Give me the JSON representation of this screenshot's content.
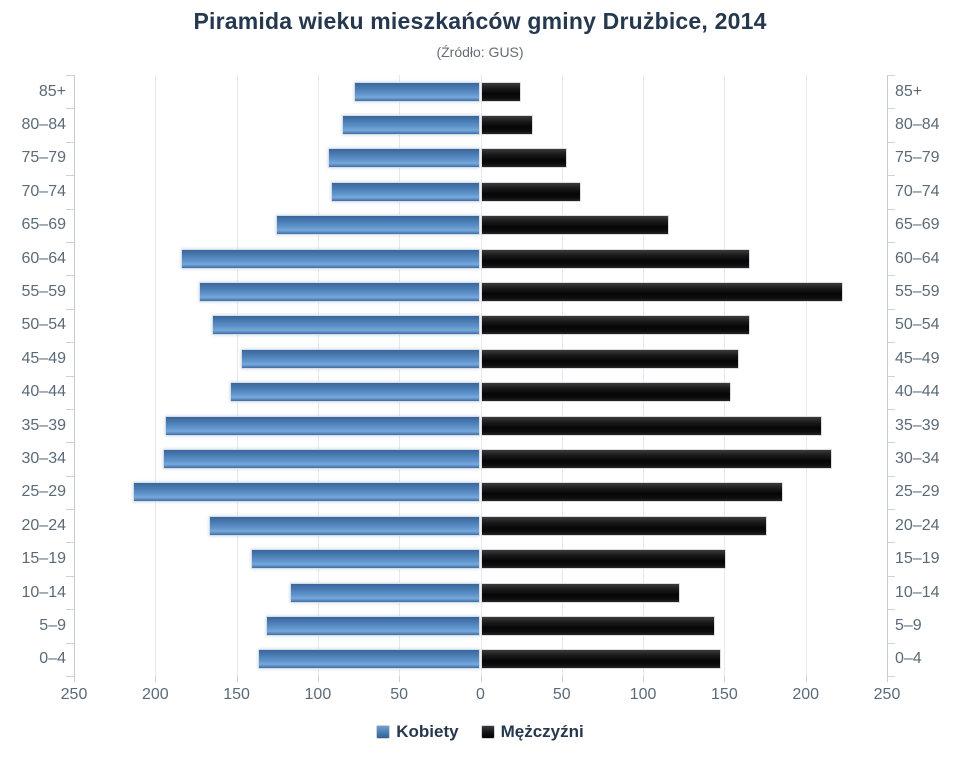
{
  "title": "Piramida wieku mieszkańców gminy Drużbice, 2014",
  "subtitle": "(Źródło: GUS)",
  "colors": {
    "kobiety": "#4a7cb2",
    "mezczyzni": "#141414",
    "grid": "#e6e8ea",
    "axis": "#c6cbd0",
    "labels": "#5b6a76",
    "title_text": "#25384e"
  },
  "legend": {
    "position": "bottom",
    "items": [
      {
        "label": "Kobiety",
        "series": "kobiety"
      },
      {
        "label": "Mężczyźni",
        "series": "mezczyzni"
      }
    ]
  },
  "chart_data": {
    "type": "bar",
    "variant": "population-pyramid",
    "title": "Piramida wieku mieszkańców gminy Drużbice, 2014",
    "subtitle": "(Źródło: GUS)",
    "categories": [
      "85+",
      "80–84",
      "75–79",
      "70–74",
      "65–69",
      "60–64",
      "55–59",
      "50–54",
      "45–49",
      "40–44",
      "35–39",
      "30–34",
      "25–29",
      "20–24",
      "15–19",
      "10–14",
      "5–9",
      "0–4"
    ],
    "series": [
      {
        "name": "Kobiety",
        "side": "left",
        "values": [
          78,
          85,
          94,
          92,
          126,
          184,
          173,
          165,
          147,
          154,
          194,
          195,
          214,
          167,
          141,
          117,
          132,
          137
        ]
      },
      {
        "name": "Mężczyźni",
        "side": "right",
        "values": [
          25,
          32,
          53,
          62,
          116,
          166,
          223,
          166,
          159,
          154,
          210,
          216,
          186,
          176,
          151,
          123,
          144,
          148
        ]
      }
    ],
    "xlim": [
      -250,
      250
    ],
    "x_tick_step": 50,
    "x_tick_labels": [
      "250",
      "200",
      "150",
      "100",
      "50",
      "0",
      "50",
      "100",
      "150",
      "200",
      "250"
    ],
    "grid": true,
    "ylabel_both_sides": true
  }
}
